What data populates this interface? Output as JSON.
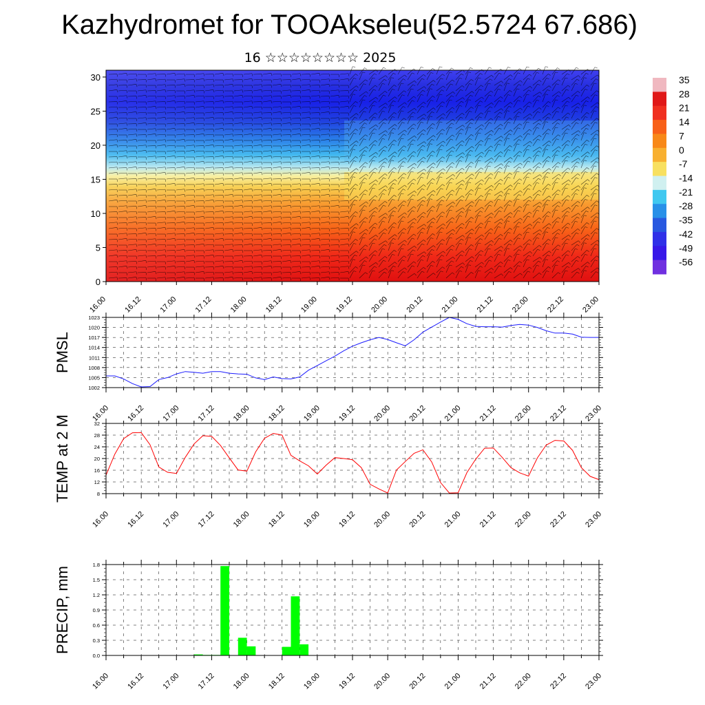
{
  "header": {
    "title": "Kazhydromet for TOOAkseleu(52.5724 67.686)",
    "subtitle": "16 ☆☆☆☆☆☆☆☆ 2025"
  },
  "colors": {
    "pmsl_line": "#1a1aff",
    "temp_line": "#ff0000",
    "precip_bar": "#00ff00",
    "grid": "#000000"
  },
  "time_labels": [
    "16.00",
    "16.12",
    "17.00",
    "17.12",
    "18.00",
    "18.12",
    "19.00",
    "19.12",
    "20.00",
    "20.12",
    "21.00",
    "21.12",
    "22.00",
    "22.12",
    "23.00"
  ],
  "chart_data": [
    {
      "type": "heatmap",
      "y_ticks": [
        "0",
        "5",
        "10",
        "15",
        "20",
        "25",
        "30"
      ],
      "ylim": [
        0,
        31
      ],
      "colorbar": {
        "labels": [
          "35",
          "28",
          "21",
          "14",
          "7",
          "0",
          "-7",
          "-14",
          "-21",
          "-28",
          "-35",
          "-42",
          "-49",
          "-56"
        ],
        "colors": [
          "#f0b8c0",
          "#e01818",
          "#f03020",
          "#f86018",
          "#f88818",
          "#f8b030",
          "#f8e060",
          "#d0f0f0",
          "#40c8f0",
          "#2890e8",
          "#2858e0",
          "#3030e8",
          "#3818e8",
          "#7030e0"
        ]
      }
    },
    {
      "type": "line",
      "ylabel": "PMSL",
      "y_ticks": [
        "1002",
        "1005",
        "1008",
        "1011",
        "1014",
        "1017",
        "1020",
        "1023"
      ],
      "ylim": [
        1002,
        1023
      ],
      "x": [
        0,
        3,
        6,
        9,
        12,
        15,
        18,
        21,
        24,
        27,
        30,
        33,
        36,
        39,
        42,
        45,
        48,
        51,
        54,
        57,
        60,
        63,
        66,
        69,
        72,
        75,
        78,
        81,
        84,
        87,
        90,
        93,
        96,
        99,
        102,
        105,
        108,
        111,
        114,
        117,
        120,
        123,
        126,
        129,
        132,
        135,
        138,
        141,
        144,
        147,
        150,
        153,
        156,
        159,
        162,
        165,
        168
      ],
      "series": [
        {
          "values": [
            1005.5,
            1005.5,
            1004.6,
            1003.2,
            1002.2,
            1002.3,
            1004.4,
            1005.0,
            1006.1,
            1006.8,
            1006.6,
            1006.3,
            1006.8,
            1006.8,
            1006.3,
            1006.1,
            1006.0,
            1004.9,
            1004.4,
            1005.2,
            1004.7,
            1004.6,
            1005.2,
            1007.2,
            1008.6,
            1010.0,
            1011.4,
            1013.0,
            1014.4,
            1015.4,
            1016.3,
            1017.0,
            1016.4,
            1015.4,
            1014.5,
            1016.3,
            1018.6,
            1020.1,
            1021.6,
            1023.0,
            1022.4,
            1021.1,
            1020.3,
            1020.2,
            1020.2,
            1020.1,
            1020.6,
            1020.9,
            1020.7,
            1020.0,
            1019.0,
            1018.3,
            1018.3,
            1018.0,
            1017.1,
            1017.0,
            1017.0
          ]
        }
      ]
    },
    {
      "type": "line",
      "ylabel": "TEMP at 2 M",
      "y_ticks": [
        "8",
        "12",
        "16",
        "20",
        "24",
        "28",
        "32"
      ],
      "ylim": [
        8,
        32
      ],
      "x": [
        0,
        3,
        6,
        9,
        12,
        15,
        18,
        21,
        24,
        27,
        30,
        33,
        36,
        39,
        42,
        45,
        48,
        51,
        54,
        57,
        60,
        63,
        66,
        69,
        72,
        75,
        78,
        81,
        84,
        87,
        90,
        93,
        96,
        99,
        102,
        105,
        108,
        111,
        114,
        117,
        120,
        123,
        126,
        129,
        132,
        135,
        138,
        141,
        144,
        147,
        150,
        153,
        156,
        159,
        162,
        165,
        168
      ],
      "series": [
        {
          "values": [
            14.3,
            21.5,
            26.8,
            28.8,
            28.9,
            24.7,
            17.1,
            15.3,
            14.9,
            20.4,
            25.0,
            27.8,
            27.6,
            24.5,
            20.2,
            16.1,
            15.7,
            22.3,
            26.9,
            28.6,
            28.0,
            21.1,
            19.2,
            17.5,
            14.7,
            17.7,
            20.3,
            20.0,
            19.6,
            16.9,
            11.2,
            9.6,
            8.2,
            16.1,
            19.0,
            21.8,
            23.0,
            18.8,
            11.8,
            8.2,
            8.3,
            15.2,
            19.8,
            23.5,
            23.6,
            20.4,
            16.9,
            15.1,
            14.0,
            20.2,
            24.6,
            26.2,
            26.0,
            22.8,
            16.9,
            13.9,
            12.8
          ]
        }
      ]
    },
    {
      "type": "bar",
      "ylabel": "PRECIP, mm",
      "y_ticks": [
        "0.0",
        "0.3",
        "0.6",
        "0.9",
        "1.2",
        "1.5",
        "1.8"
      ],
      "ylim": [
        0,
        1.8
      ],
      "x": [
        0,
        3,
        6,
        9,
        12,
        15,
        18,
        21,
        24,
        27,
        30,
        33,
        36,
        39,
        42,
        45,
        48,
        51,
        54,
        57,
        60,
        63,
        66,
        69,
        72,
        75,
        78,
        81,
        84,
        87,
        90,
        93,
        96,
        99,
        102,
        105,
        108,
        111,
        114,
        117,
        120,
        123,
        126,
        129,
        132,
        135,
        138,
        141,
        144,
        147,
        150,
        153,
        156,
        159,
        162,
        165
      ],
      "values": [
        0,
        0,
        0,
        0,
        0,
        0,
        0,
        0,
        0,
        0,
        0.02,
        0.01,
        0.01,
        1.77,
        0,
        0.35,
        0.18,
        0,
        0,
        0,
        0.17,
        1.17,
        0.22,
        0,
        0,
        0,
        0,
        0,
        0,
        0,
        0,
        0,
        0,
        0,
        0,
        0,
        0,
        0,
        0,
        0,
        0,
        0,
        0,
        0,
        0,
        0,
        0,
        0,
        0,
        0,
        0,
        0,
        0,
        0,
        0,
        0
      ]
    }
  ]
}
